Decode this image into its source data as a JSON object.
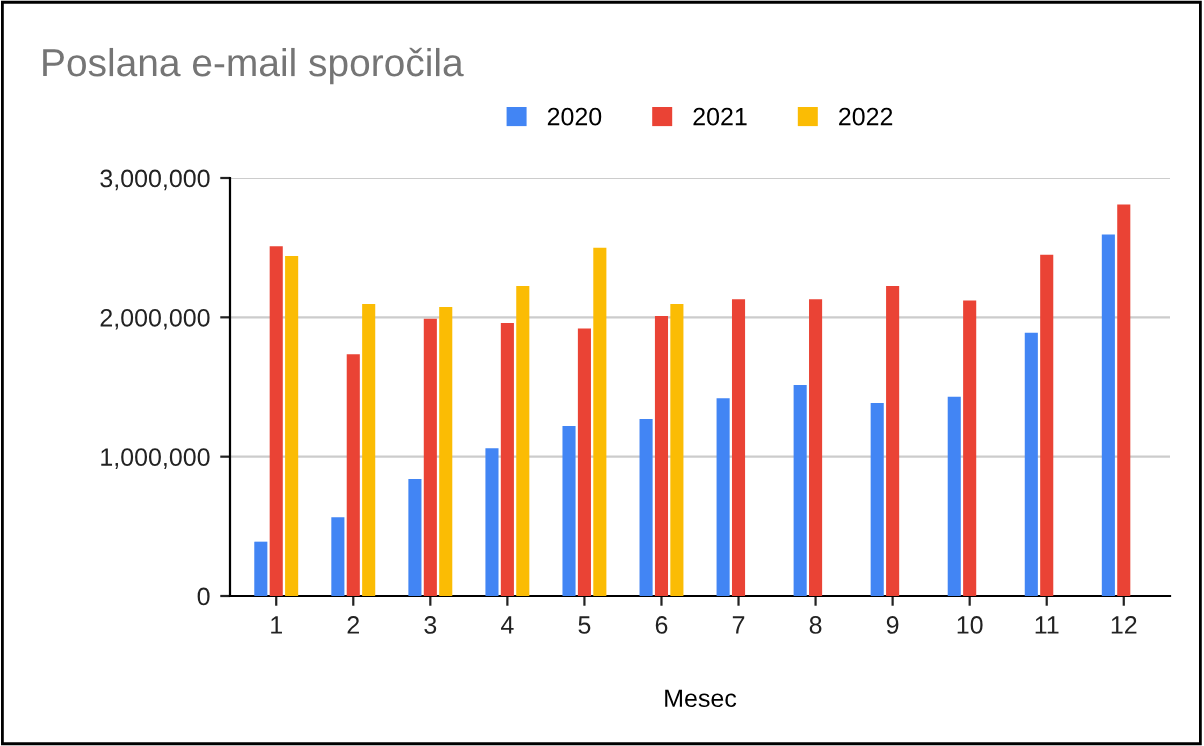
{
  "chart_data": {
    "type": "bar",
    "title": "Poslana e-mail sporočila",
    "xlabel": "Mesec",
    "categories": [
      "1",
      "2",
      "3",
      "4",
      "5",
      "6",
      "7",
      "8",
      "9",
      "10",
      "11",
      "12"
    ],
    "series": [
      {
        "name": "2020",
        "color": "#4285f4",
        "values": [
          390000,
          565000,
          840000,
          1060000,
          1220000,
          1270000,
          1420000,
          1515000,
          1385000,
          1430000,
          1890000,
          2595000
        ]
      },
      {
        "name": "2021",
        "color": "#ea4335",
        "values": [
          2510000,
          1735000,
          1990000,
          1960000,
          1920000,
          2010000,
          2130000,
          2130000,
          2225000,
          2120000,
          2450000,
          2810000
        ]
      },
      {
        "name": "2022",
        "color": "#fbbc04",
        "values": [
          2440000,
          2095000,
          2075000,
          2225000,
          2500000,
          2095000,
          null,
          null,
          null,
          null,
          null,
          null
        ]
      }
    ],
    "ylim": [
      0,
      3000000
    ],
    "yticks": [
      {
        "value": 0,
        "label": "0"
      },
      {
        "value": 1000000,
        "label": "1,000,000"
      },
      {
        "value": 2000000,
        "label": "2,000,000"
      },
      {
        "value": 3000000,
        "label": "3,000,000"
      }
    ],
    "grid": "y",
    "legend": "top"
  }
}
